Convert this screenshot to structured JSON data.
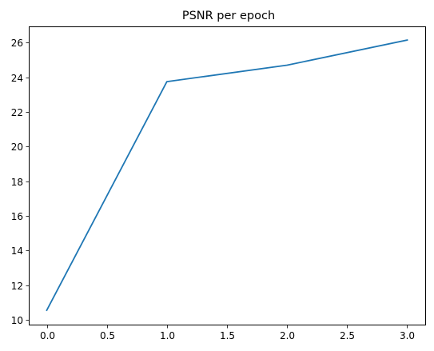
{
  "chart_data": {
    "type": "line",
    "title": "PSNR per epoch",
    "xlabel": "",
    "ylabel": "",
    "xlim": [
      -0.15,
      3.15
    ],
    "ylim": [
      9.72,
      26.94
    ],
    "x_ticks": [
      0.0,
      0.5,
      1.0,
      1.5,
      2.0,
      2.5,
      3.0
    ],
    "x_tick_labels": [
      "0.0",
      "0.5",
      "1.0",
      "1.5",
      "2.0",
      "2.5",
      "3.0"
    ],
    "y_ticks": [
      10,
      12,
      14,
      16,
      18,
      20,
      22,
      24,
      26
    ],
    "y_tick_labels": [
      "10",
      "12",
      "14",
      "16",
      "18",
      "20",
      "22",
      "24",
      "26"
    ],
    "grid": false,
    "legend": "none",
    "series": [
      {
        "x": [
          0,
          1,
          2,
          3
        ],
        "values": [
          10.55,
          23.75,
          24.7,
          26.15
        ],
        "color": "#1f77b4"
      }
    ]
  }
}
